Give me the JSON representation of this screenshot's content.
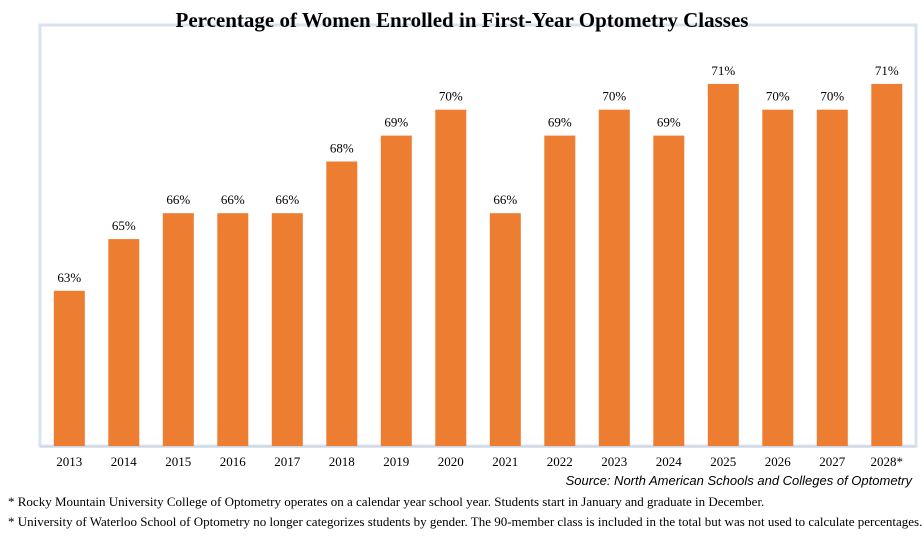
{
  "chart_data": {
    "type": "bar",
    "title": "Percentage of Women Enrolled in First-Year Optometry Classes",
    "categories": [
      "2013",
      "2014",
      "2015",
      "2016",
      "2017",
      "2018",
      "2019",
      "2020",
      "2021",
      "2022",
      "2023",
      "2024",
      "2025",
      "2026",
      "2027",
      "2028*"
    ],
    "values": [
      63,
      65,
      66,
      66,
      66,
      68,
      69,
      70,
      66,
      69,
      70,
      69,
      71,
      70,
      70,
      71
    ],
    "value_labels": [
      "63%",
      "65%",
      "66%",
      "66%",
      "66%",
      "68%",
      "69%",
      "70%",
      "66%",
      "69%",
      "70%",
      "69%",
      "71%",
      "70%",
      "70%",
      "71%"
    ],
    "ylim": [
      57,
      72
    ],
    "grid": false,
    "bar_color": "#ED7D31",
    "source": "Source: North American Schools and Colleges of Optometry"
  },
  "footnotes": [
    "* Rocky Mountain University College of Optometry operates on a calendar year school year. Students start in January and graduate in December.",
    "* University  of Waterloo School of Optometry no longer categorizes students by gender. The 90-member class is included in the total but was not used to calculate percentages."
  ]
}
